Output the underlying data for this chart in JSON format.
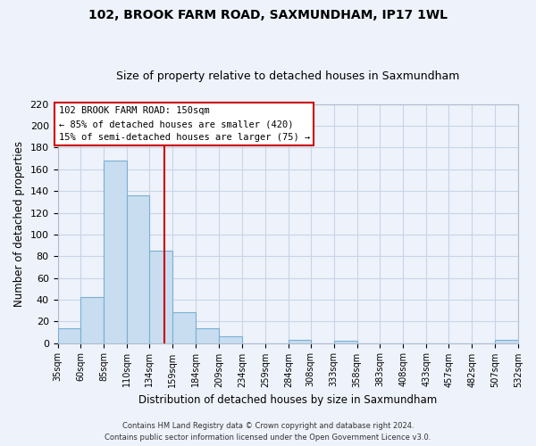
{
  "title": "102, BROOK FARM ROAD, SAXMUNDHAM, IP17 1WL",
  "subtitle": "Size of property relative to detached houses in Saxmundham",
  "xlabel": "Distribution of detached houses by size in Saxmundham",
  "ylabel": "Number of detached properties",
  "footer_line1": "Contains HM Land Registry data © Crown copyright and database right 2024.",
  "footer_line2": "Contains public sector information licensed under the Open Government Licence v3.0.",
  "bar_edges": [
    35,
    60,
    85,
    110,
    134,
    159,
    184,
    209,
    234,
    259,
    284,
    308,
    333,
    358,
    383,
    408,
    433,
    457,
    482,
    507,
    532
  ],
  "bar_heights": [
    14,
    42,
    168,
    136,
    85,
    28,
    14,
    6,
    0,
    0,
    3,
    0,
    2,
    0,
    0,
    0,
    0,
    0,
    0,
    3
  ],
  "tick_labels": [
    "35sqm",
    "60sqm",
    "85sqm",
    "110sqm",
    "134sqm",
    "159sqm",
    "184sqm",
    "209sqm",
    "234sqm",
    "259sqm",
    "284sqm",
    "308sqm",
    "333sqm",
    "358sqm",
    "383sqm",
    "408sqm",
    "433sqm",
    "457sqm",
    "482sqm",
    "507sqm",
    "532sqm"
  ],
  "bar_color": "#c8ddf0",
  "bar_edge_color": "#7ab0d4",
  "reference_line_x": 150,
  "reference_line_color": "#cc0000",
  "ylim": [
    0,
    220
  ],
  "yticks": [
    0,
    20,
    40,
    60,
    80,
    100,
    120,
    140,
    160,
    180,
    200,
    220
  ],
  "annotation_title": "102 BROOK FARM ROAD: 150sqm",
  "annotation_line1": "← 85% of detached houses are smaller (420)",
  "annotation_line2": "15% of semi-detached houses are larger (75) →",
  "box_facecolor": "#ffffff",
  "box_edgecolor": "#cc0000",
  "grid_color": "#c8d4e8",
  "background_color": "#eef2fb",
  "title_fontsize": 10,
  "subtitle_fontsize": 9
}
